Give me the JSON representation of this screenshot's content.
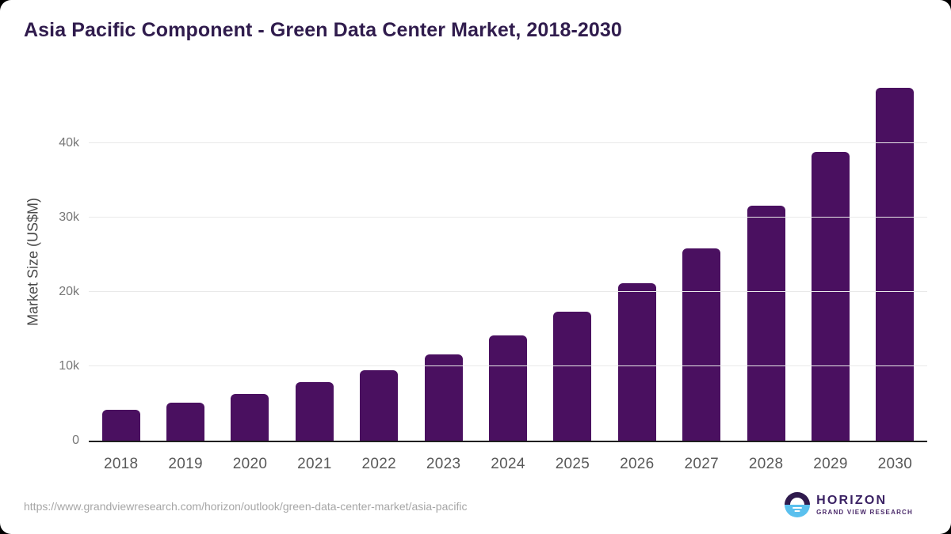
{
  "chart_data": {
    "type": "bar",
    "title": "Asia Pacific Component - Green Data Center Market, 2018-2030",
    "xlabel": "",
    "ylabel": "Market Size (US$M)",
    "categories": [
      "2018",
      "2019",
      "2020",
      "2021",
      "2022",
      "2023",
      "2024",
      "2025",
      "2026",
      "2027",
      "2028",
      "2029",
      "2030"
    ],
    "values": [
      4200,
      5100,
      6250,
      7850,
      9450,
      11550,
      14150,
      17350,
      21200,
      25900,
      31600,
      38800,
      47400
    ],
    "unit": "US$M",
    "ylim": [
      0,
      48000
    ],
    "yticks": [
      {
        "label": "0",
        "value": 0
      },
      {
        "label": "10k",
        "value": 10000
      },
      {
        "label": "20k",
        "value": 20000
      },
      {
        "label": "30k",
        "value": 30000
      },
      {
        "label": "40k",
        "value": 40000
      }
    ],
    "grid": "horizontal",
    "legend": "none",
    "bar_color": "#4a1060"
  },
  "colors": {
    "title": "#301c4d",
    "bar": "#4a1060",
    "logo_purple": "#2f1a4d",
    "logo_blue": "#5ac0ee"
  },
  "footer": {
    "source_url": "https://www.grandviewresearch.com/horizon/outlook/green-data-center-market/asia-pacific",
    "logo": {
      "name": "HORIZON",
      "subtitle": "GRAND VIEW RESEARCH"
    }
  }
}
